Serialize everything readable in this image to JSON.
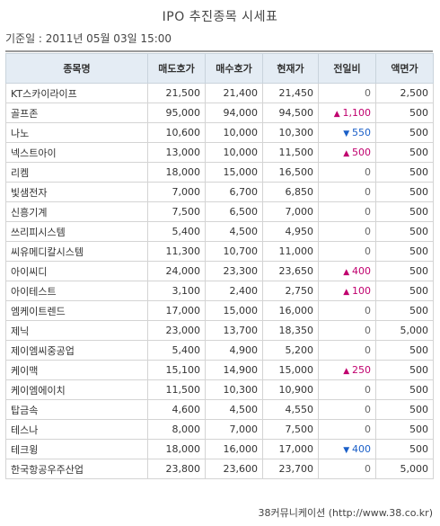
{
  "page": {
    "title": "IPO 추진종목 시세표",
    "basis": "기준일 : 2011년 05월 03일 15:00",
    "footer": "38커뮤니케이션 (http://www.38.co.kr)"
  },
  "colors": {
    "up": "#c0006e",
    "down": "#1a5fc8",
    "header_bg": "#e4ecf4"
  },
  "table": {
    "headers": [
      "종목명",
      "매도호가",
      "매수호가",
      "현재가",
      "전일비",
      "액면가"
    ],
    "rows": [
      {
        "name": "KT스카이라이프",
        "sell": "21,500",
        "buy": "21,400",
        "price": "21,450",
        "dir": "",
        "change": "0",
        "par": "2,500"
      },
      {
        "name": "골프존",
        "sell": "95,000",
        "buy": "94,000",
        "price": "94,500",
        "dir": "up",
        "change": "1,100",
        "par": "500"
      },
      {
        "name": "나노",
        "sell": "10,600",
        "buy": "10,000",
        "price": "10,300",
        "dir": "down",
        "change": "550",
        "par": "500"
      },
      {
        "name": "넥스트아이",
        "sell": "13,000",
        "buy": "10,000",
        "price": "11,500",
        "dir": "up",
        "change": "500",
        "par": "500"
      },
      {
        "name": "리켐",
        "sell": "18,000",
        "buy": "15,000",
        "price": "16,500",
        "dir": "",
        "change": "0",
        "par": "500"
      },
      {
        "name": "빛샘전자",
        "sell": "7,000",
        "buy": "6,700",
        "price": "6,850",
        "dir": "",
        "change": "0",
        "par": "500"
      },
      {
        "name": "신흥기계",
        "sell": "7,500",
        "buy": "6,500",
        "price": "7,000",
        "dir": "",
        "change": "0",
        "par": "500"
      },
      {
        "name": "쓰리피시스템",
        "sell": "5,400",
        "buy": "4,500",
        "price": "4,950",
        "dir": "",
        "change": "0",
        "par": "500"
      },
      {
        "name": "씨유메디칼시스템",
        "sell": "11,300",
        "buy": "10,700",
        "price": "11,000",
        "dir": "",
        "change": "0",
        "par": "500"
      },
      {
        "name": "아이씨디",
        "sell": "24,000",
        "buy": "23,300",
        "price": "23,650",
        "dir": "up",
        "change": "400",
        "par": "500"
      },
      {
        "name": "아이테스트",
        "sell": "3,100",
        "buy": "2,400",
        "price": "2,750",
        "dir": "up",
        "change": "100",
        "par": "500"
      },
      {
        "name": "엠케이트렌드",
        "sell": "17,000",
        "buy": "15,000",
        "price": "16,000",
        "dir": "",
        "change": "0",
        "par": "500"
      },
      {
        "name": "제닉",
        "sell": "23,000",
        "buy": "13,700",
        "price": "18,350",
        "dir": "",
        "change": "0",
        "par": "5,000"
      },
      {
        "name": "제이엠씨중공업",
        "sell": "5,400",
        "buy": "4,900",
        "price": "5,200",
        "dir": "",
        "change": "0",
        "par": "500"
      },
      {
        "name": "케이맥",
        "sell": "15,100",
        "buy": "14,900",
        "price": "15,000",
        "dir": "up",
        "change": "250",
        "par": "500"
      },
      {
        "name": "케이엠에이치",
        "sell": "11,500",
        "buy": "10,300",
        "price": "10,900",
        "dir": "",
        "change": "0",
        "par": "500"
      },
      {
        "name": "탑금속",
        "sell": "4,600",
        "buy": "4,500",
        "price": "4,550",
        "dir": "",
        "change": "0",
        "par": "500"
      },
      {
        "name": "테스나",
        "sell": "8,000",
        "buy": "7,000",
        "price": "7,500",
        "dir": "",
        "change": "0",
        "par": "500"
      },
      {
        "name": "테크윙",
        "sell": "18,000",
        "buy": "16,000",
        "price": "17,000",
        "dir": "down",
        "change": "400",
        "par": "500"
      },
      {
        "name": "한국항공우주산업",
        "sell": "23,800",
        "buy": "23,600",
        "price": "23,700",
        "dir": "",
        "change": "0",
        "par": "5,000"
      }
    ]
  }
}
